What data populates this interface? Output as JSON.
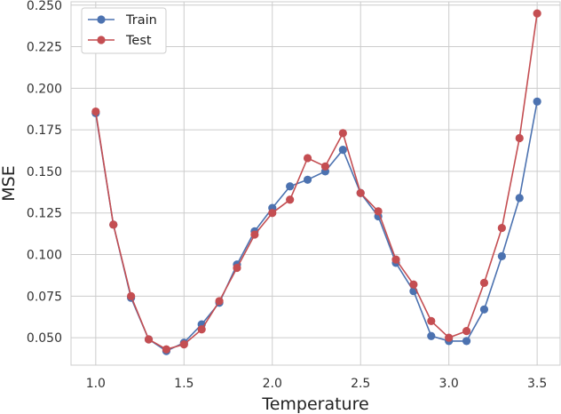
{
  "chart_data": {
    "type": "line",
    "xlabel": "Temperature",
    "ylabel": "MSE",
    "xlim": [
      0.86,
      3.63
    ],
    "ylim": [
      0.0335,
      0.252
    ],
    "xticks": [
      1.0,
      1.5,
      2.0,
      2.5,
      3.0,
      3.5
    ],
    "xtick_labels": [
      "1.0",
      "1.5",
      "2.0",
      "2.5",
      "3.0",
      "3.5"
    ],
    "yticks": [
      0.05,
      0.075,
      0.1,
      0.125,
      0.15,
      0.175,
      0.2,
      0.225,
      0.25
    ],
    "ytick_labels": [
      "0.050",
      "0.075",
      "0.100",
      "0.125",
      "0.150",
      "0.175",
      "0.200",
      "0.225",
      "0.250"
    ],
    "grid": true,
    "legend_position": "top-left",
    "x": [
      1.0,
      1.1,
      1.2,
      1.3,
      1.4,
      1.5,
      1.6,
      1.7,
      1.8,
      1.9,
      2.0,
      2.1,
      2.2,
      2.3,
      2.4,
      2.5,
      2.6,
      2.7,
      2.8,
      2.9,
      3.0,
      3.1,
      3.2,
      3.3,
      3.4,
      3.5
    ],
    "series": [
      {
        "name": "Train",
        "color": "#4c72b0",
        "values": [
          0.185,
          0.118,
          0.074,
          0.049,
          0.042,
          0.047,
          0.058,
          0.071,
          0.094,
          0.114,
          0.128,
          0.141,
          0.145,
          0.15,
          0.163,
          0.137,
          0.123,
          0.095,
          0.078,
          0.051,
          0.048,
          0.048,
          0.067,
          0.099,
          0.134,
          0.192
        ]
      },
      {
        "name": "Test",
        "color": "#c44e52",
        "values": [
          0.186,
          0.118,
          0.075,
          0.049,
          0.043,
          0.046,
          0.055,
          0.072,
          0.092,
          0.112,
          0.125,
          0.133,
          0.158,
          0.153,
          0.173,
          0.137,
          0.126,
          0.097,
          0.082,
          0.06,
          0.05,
          0.054,
          0.083,
          0.116,
          0.17,
          0.245
        ]
      }
    ]
  }
}
